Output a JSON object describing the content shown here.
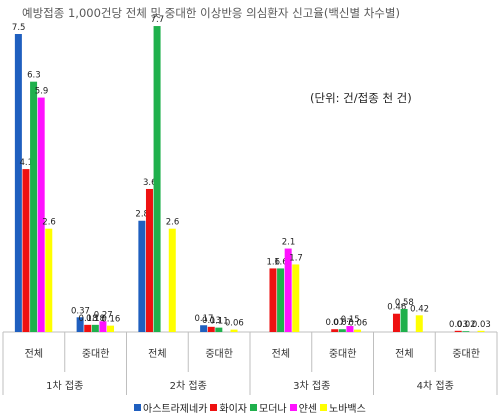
{
  "chart_data": {
    "type": "bar",
    "title": "예방접종 1,000건당 전체 및 중대한 이상반응 의심환자 신고율(백신별 차수별)",
    "unit_note": "(단위: 건/접종 천 건)",
    "groups": [
      {
        "name": "1차 접종",
        "categories": [
          "전체",
          "중대한"
        ]
      },
      {
        "name": "2차 접종",
        "categories": [
          "전체",
          "중대한"
        ]
      },
      {
        "name": "3차 접종",
        "categories": [
          "전체",
          "중대한"
        ]
      },
      {
        "name": "4차 접종",
        "categories": [
          "전체",
          "중대한"
        ]
      }
    ],
    "series": [
      {
        "name": "아스트라제네카",
        "color": "#1f5fbf",
        "values": [
          7.5,
          0.37,
          2.8,
          0.17,
          null,
          null,
          null,
          null
        ],
        "labels": [
          "7.5",
          "0.37",
          "2.8",
          "0.17",
          "",
          "",
          "",
          ""
        ]
      },
      {
        "name": "화이자",
        "color": "#ee1111",
        "values": [
          4.1,
          0.18,
          3.6,
          0.13,
          1.6,
          0.07,
          0.46,
          0.03
        ],
        "labels": [
          "4.1",
          "0.18",
          "3.6",
          "0.13",
          "1.6",
          "0.07",
          "0.46",
          "0.03"
        ]
      },
      {
        "name": "모더나",
        "color": "#1fb04c",
        "values": [
          6.3,
          0.18,
          7.7,
          0.11,
          1.6,
          0.07,
          0.58,
          0.02
        ],
        "labels": [
          "6.3",
          "0.18",
          "7.7",
          "0.11",
          "1.6",
          "0.07",
          "0.58",
          "0.02"
        ]
      },
      {
        "name": "얀센",
        "color": "#ff11ff",
        "values": [
          5.9,
          0.27,
          null,
          null,
          2.1,
          0.15,
          null,
          null
        ],
        "labels": [
          "5.9",
          "0.27",
          "",
          "",
          "2.1",
          "0.15",
          "",
          ""
        ]
      },
      {
        "name": "노바백스",
        "color": "#ffff00",
        "values": [
          2.6,
          0.16,
          2.6,
          0.06,
          1.7,
          0.06,
          0.42,
          0.03
        ],
        "labels": [
          "2.6",
          "0.16",
          "2.6",
          "0.06",
          "1.7",
          "0.06",
          "0.42",
          "0.03"
        ]
      }
    ],
    "ylim": [
      0,
      8
    ],
    "grid": false,
    "legend_position": "bottom"
  }
}
